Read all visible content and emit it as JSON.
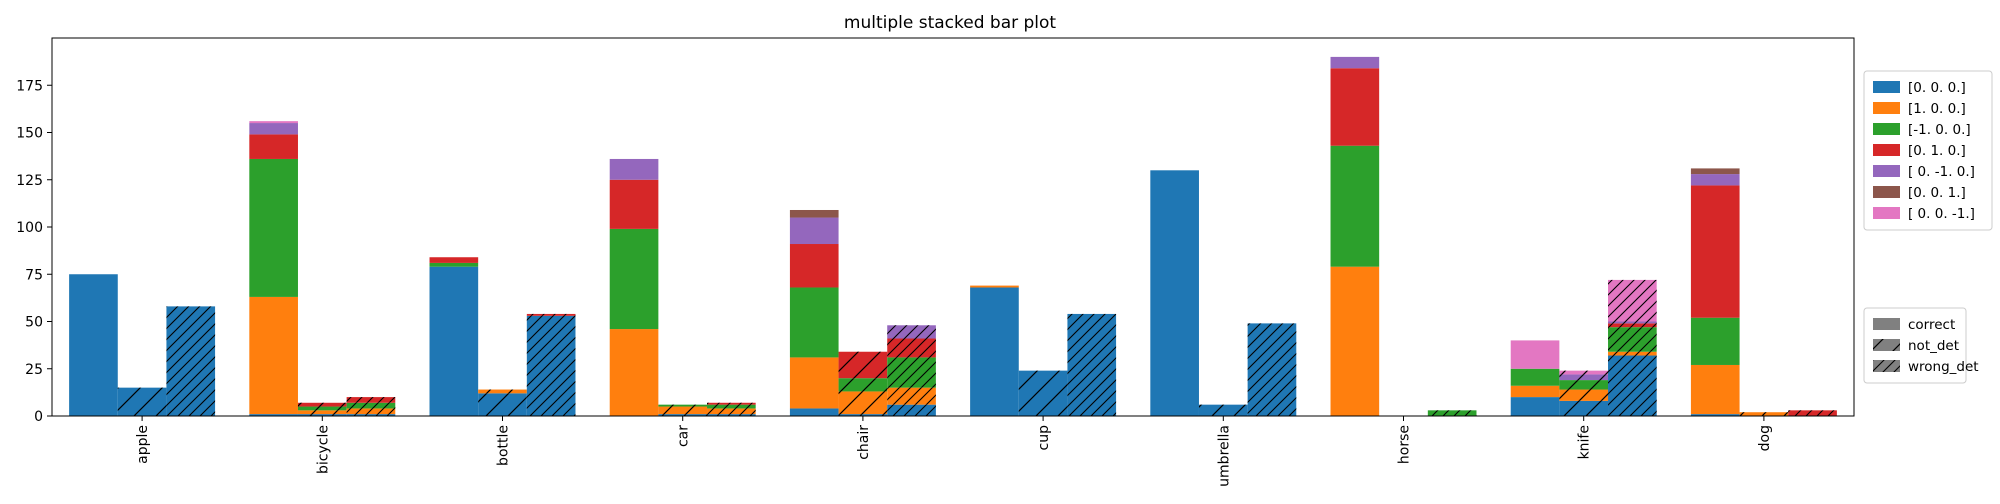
{
  "chart_data": {
    "type": "bar",
    "title": "multiple stacked bar plot",
    "xlabel": "",
    "ylabel": "",
    "ylim": [
      0,
      200
    ],
    "yticks": [
      0,
      25,
      50,
      75,
      100,
      125,
      150,
      175
    ],
    "categories": [
      "apple",
      "bicycle",
      "bottle",
      "car",
      "chair",
      "cup",
      "umbrella",
      "horse",
      "knife",
      "dog"
    ],
    "groups": [
      {
        "name": "correct",
        "pattern": "none"
      },
      {
        "name": "not_det",
        "pattern": "single-hatch"
      },
      {
        "name": "wrong_det",
        "pattern": "double-hatch"
      }
    ],
    "series": [
      {
        "name": "[0. 0. 0.]",
        "color": "#1f77b4",
        "correct": [
          75,
          1,
          79,
          0,
          4,
          68,
          130,
          0,
          10,
          1
        ],
        "not_det": [
          15,
          1,
          12,
          1,
          1,
          24,
          6,
          0,
          8,
          0
        ],
        "wrong_det": [
          58,
          1,
          53,
          1,
          6,
          54,
          49,
          0,
          32,
          0
        ]
      },
      {
        "name": "[1. 0. 0.]",
        "color": "#ff7f0e",
        "correct": [
          0,
          62,
          0,
          46,
          27,
          1,
          0,
          79,
          6,
          26
        ],
        "not_det": [
          0,
          2,
          2,
          4,
          12,
          0,
          0,
          0,
          6,
          2
        ],
        "wrong_det": [
          0,
          3,
          0,
          3,
          9,
          0,
          0,
          0,
          2,
          0
        ]
      },
      {
        "name": "[-1.  0.  0.]",
        "color": "#2ca02c",
        "correct": [
          0,
          73,
          2,
          53,
          37,
          0,
          0,
          64,
          9,
          25
        ],
        "not_det": [
          0,
          2,
          0,
          1,
          7,
          0,
          0,
          0,
          5,
          0
        ],
        "wrong_det": [
          0,
          3,
          0,
          2,
          16,
          0,
          0,
          3,
          13,
          0
        ]
      },
      {
        "name": "[0. 1. 0.]",
        "color": "#d62728",
        "correct": [
          0,
          13,
          3,
          26,
          23,
          0,
          0,
          41,
          0,
          70
        ],
        "not_det": [
          0,
          2,
          0,
          0,
          14,
          0,
          0,
          0,
          0,
          0
        ],
        "wrong_det": [
          0,
          3,
          1,
          1,
          10,
          0,
          0,
          0,
          2,
          3
        ]
      },
      {
        "name": "[ 0. -1.  0.]",
        "color": "#9467bd",
        "correct": [
          0,
          6,
          0,
          11,
          14,
          0,
          0,
          6,
          0,
          6
        ],
        "not_det": [
          0,
          0,
          0,
          0,
          0,
          0,
          0,
          0,
          3,
          0
        ],
        "wrong_det": [
          0,
          0,
          0,
          0,
          7,
          0,
          0,
          0,
          1,
          0
        ]
      },
      {
        "name": "[0. 0. 1.]",
        "color": "#8c564b",
        "correct": [
          0,
          0,
          0,
          0,
          4,
          0,
          0,
          0,
          0,
          3
        ],
        "not_det": [
          0,
          0,
          0,
          0,
          0,
          0,
          0,
          0,
          0,
          0
        ],
        "wrong_det": [
          0,
          0,
          0,
          0,
          0,
          0,
          0,
          0,
          0,
          0
        ]
      },
      {
        "name": "[ 0.  0. -1.]",
        "color": "#e377c2",
        "correct": [
          0,
          1,
          0,
          0,
          0,
          0,
          0,
          0,
          15,
          0
        ],
        "not_det": [
          0,
          0,
          0,
          0,
          0,
          0,
          0,
          0,
          2,
          0
        ],
        "wrong_det": [
          0,
          0,
          0,
          0,
          0,
          0,
          0,
          0,
          22,
          0
        ]
      }
    ],
    "legend_placement": "right-outside",
    "grid": false
  },
  "legend": {
    "series_title": "",
    "group_title": "",
    "group_swatch_color": "#808080"
  }
}
